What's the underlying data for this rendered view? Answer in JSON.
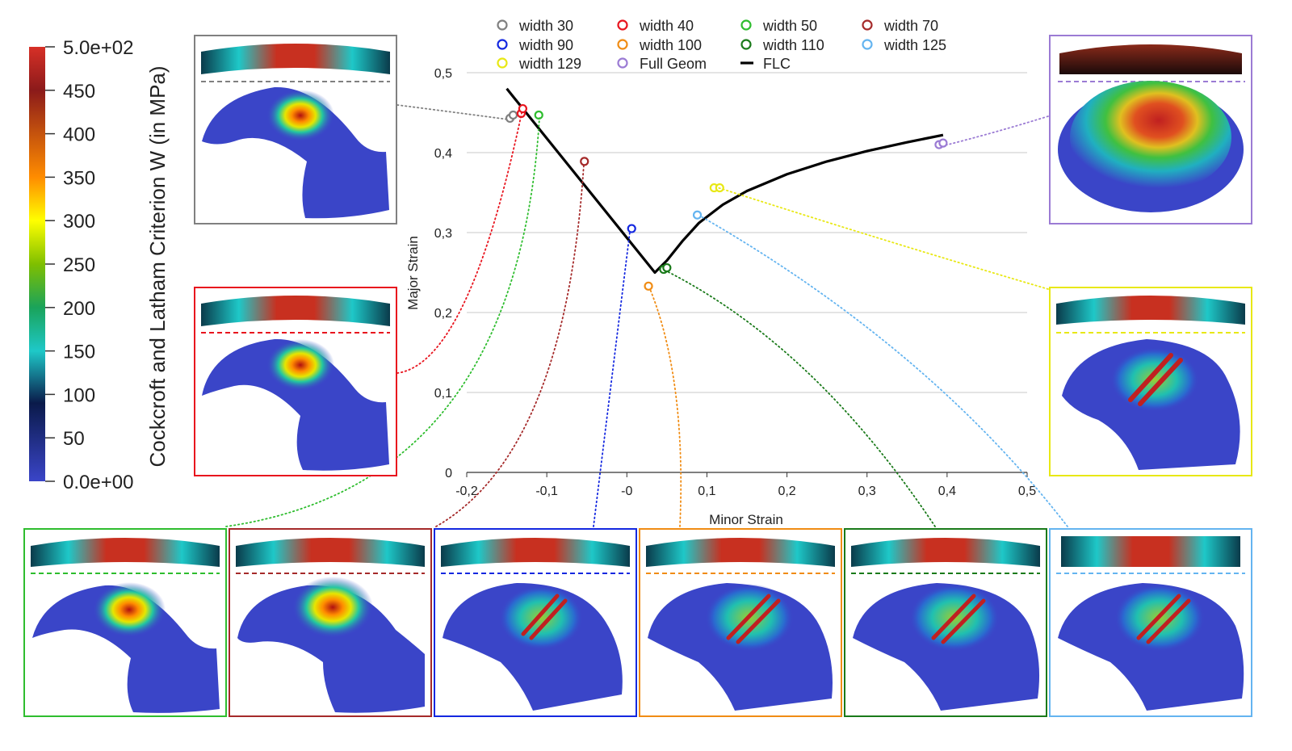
{
  "colorbar": {
    "title": "Cockcroft and Latham Criterion W (in MPa)",
    "title_overline_char": "W",
    "ticks": [
      "5.0e+02",
      "450",
      "400",
      "350",
      "300",
      "250",
      "200",
      "150",
      "100",
      "50",
      "0.0e+00"
    ],
    "tick_values": [
      500,
      450,
      400,
      350,
      300,
      250,
      200,
      150,
      100,
      50,
      0
    ],
    "colors": [
      "#d73027",
      "#8b1a1a",
      "#ff8c00",
      "#ffff00",
      "#7fbf00",
      "#1aa35a",
      "#1ec8c8",
      "#0a1a4a",
      "#3a45c8"
    ]
  },
  "chart_data": {
    "type": "scatter",
    "xlabel": "Minor Strain",
    "ylabel": "Major Strain",
    "xlim": [
      -0.2,
      0.5
    ],
    "ylim": [
      0,
      0.5
    ],
    "xticks": [
      -0.2,
      -0.1,
      0,
      0.1,
      0.2,
      0.3,
      0.4,
      0.5
    ],
    "xtick_labels": [
      "-0,2",
      "-0,1",
      "-0",
      "0,1",
      "0,2",
      "0,3",
      "0,4",
      "0,5"
    ],
    "yticks": [
      0,
      0.1,
      0.2,
      0.3,
      0.4,
      0.5
    ],
    "ytick_labels": [
      "0",
      "0,1",
      "0,2",
      "0,3",
      "0,4",
      "0,5"
    ],
    "grid": "horizontal",
    "legend_position": "top",
    "series": [
      {
        "name": "width 30",
        "color": "#808080",
        "points": [
          [
            -0.146,
            0.443
          ],
          [
            -0.142,
            0.447
          ]
        ]
      },
      {
        "name": "width 40",
        "color": "#e8141e",
        "points": [
          [
            -0.132,
            0.449
          ],
          [
            -0.13,
            0.455
          ]
        ]
      },
      {
        "name": "width 50",
        "color": "#2ebd2e",
        "points": [
          [
            -0.11,
            0.447
          ]
        ]
      },
      {
        "name": "width 70",
        "color": "#a52a2a",
        "points": [
          [
            -0.053,
            0.389
          ]
        ]
      },
      {
        "name": "width 90",
        "color": "#1428e0",
        "points": [
          [
            0.006,
            0.305
          ]
        ]
      },
      {
        "name": "width 100",
        "color": "#f08c14",
        "points": [
          [
            0.027,
            0.233
          ]
        ]
      },
      {
        "name": "width 110",
        "color": "#1a7a1a",
        "points": [
          [
            0.046,
            0.254
          ],
          [
            0.05,
            0.256
          ]
        ]
      },
      {
        "name": "width 125",
        "color": "#64b4f0",
        "points": [
          [
            0.088,
            0.322
          ]
        ]
      },
      {
        "name": "width 129",
        "color": "#e8e814",
        "points": [
          [
            0.109,
            0.356
          ],
          [
            0.116,
            0.356
          ]
        ]
      },
      {
        "name": "Full Geom",
        "color": "#9b7bd4",
        "points": [
          [
            0.39,
            0.41
          ],
          [
            0.395,
            0.412
          ]
        ]
      }
    ],
    "flc": {
      "name": "FLC",
      "color": "#000000",
      "points": [
        [
          -0.15,
          0.48
        ],
        [
          0.035,
          0.25
        ],
        [
          0.05,
          0.265
        ],
        [
          0.07,
          0.29
        ],
        [
          0.09,
          0.312
        ],
        [
          0.12,
          0.335
        ],
        [
          0.15,
          0.352
        ],
        [
          0.2,
          0.373
        ],
        [
          0.25,
          0.389
        ],
        [
          0.3,
          0.402
        ],
        [
          0.35,
          0.413
        ],
        [
          0.395,
          0.422
        ]
      ]
    }
  }
}
